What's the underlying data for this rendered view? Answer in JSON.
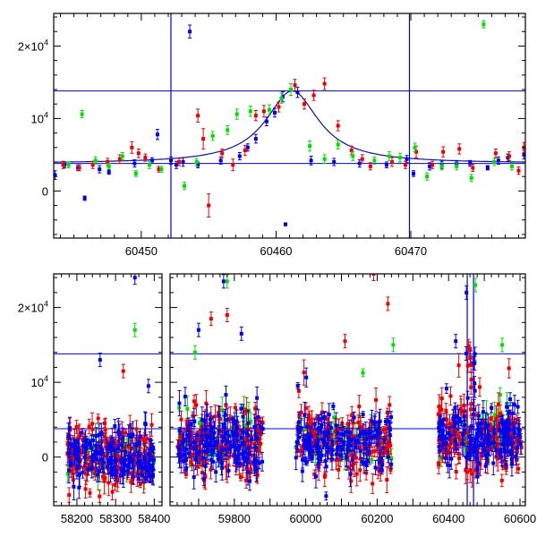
{
  "colors": {
    "blue": "#0000ee",
    "red": "#ee0000",
    "green": "#00dd00",
    "frame": "#000000"
  },
  "chart_data": [
    {
      "type": "scatter",
      "title": "",
      "xlabel": "",
      "ylabel": "",
      "xlim": [
        60443.5,
        60478.5
      ],
      "ylim": [
        -6500,
        24500
      ],
      "x_ticks": [
        {
          "value": 60450,
          "label": "60450"
        },
        {
          "value": 60460,
          "label": "60460"
        },
        {
          "value": 60470,
          "label": "60470"
        }
      ],
      "y_ticks": [
        {
          "value": 0,
          "label": "0"
        },
        {
          "value": 10000,
          "label": "10⁴"
        },
        {
          "value": 20000,
          "label": "2×10⁴"
        }
      ],
      "hlines": [
        3800,
        13800
      ],
      "vlines": [
        60452.2,
        60469.9
      ],
      "model_curve": {
        "type": "lorentzian",
        "baseline": 3800,
        "peak_x": 60461.2,
        "peak_y": 13800,
        "halfwidth": 2.4
      },
      "series": [
        {
          "color": "blue",
          "points": [
            [
              60443.6,
              2200,
              600
            ],
            [
              60444.3,
              3600,
              400
            ],
            [
              60445.3,
              3200,
              400
            ],
            [
              60445.8,
              -1000,
              300
            ],
            [
              60446.9,
              3000,
              500
            ],
            [
              60447.6,
              2600,
              300
            ],
            [
              60449.5,
              3800,
              500
            ],
            [
              60450.8,
              4200,
              400
            ],
            [
              60451.2,
              7800,
              700
            ],
            [
              60452.2,
              4200,
              500
            ],
            [
              60452.6,
              3600,
              500
            ],
            [
              60453.1,
              4000,
              600
            ],
            [
              60453.6,
              22000,
              900
            ],
            [
              60454.2,
              3600,
              400
            ],
            [
              60455.9,
              4200,
              500
            ],
            [
              60457.3,
              4800,
              500
            ],
            [
              60457.9,
              6000,
              500
            ],
            [
              60458.5,
              7200,
              600
            ],
            [
              60459.3,
              9600,
              600
            ],
            [
              60459.9,
              10800,
              600
            ],
            [
              60460.5,
              13000,
              700
            ],
            [
              60460.7,
              -4600,
              200
            ],
            [
              60461.6,
              13600,
              700
            ],
            [
              60462.6,
              4200,
              600
            ],
            [
              60464.3,
              4000,
              500
            ],
            [
              60466.2,
              3800,
              500
            ],
            [
              60468.2,
              3600,
              400
            ],
            [
              60469.7,
              4400,
              500
            ],
            [
              60470.2,
              2400,
              400
            ],
            [
              60471.4,
              3400,
              500
            ],
            [
              60472.3,
              3600,
              500
            ],
            [
              60473.4,
              3800,
              400
            ],
            [
              60474.4,
              3800,
              400
            ],
            [
              60475.7,
              3200,
              300
            ],
            [
              60476.5,
              4200,
              500
            ],
            [
              60477.2,
              4600,
              500
            ],
            [
              60478.4,
              5000,
              600
            ]
          ]
        },
        {
          "color": "red",
          "points": [
            [
              60444.2,
              3600,
              500
            ],
            [
              60445.4,
              3200,
              400
            ],
            [
              60446.4,
              3600,
              500
            ],
            [
              60447.5,
              4000,
              500
            ],
            [
              60448.4,
              4400,
              600
            ],
            [
              60449.3,
              6000,
              800
            ],
            [
              60449.8,
              5200,
              600
            ],
            [
              60450.3,
              4600,
              500
            ],
            [
              60451.3,
              3000,
              400
            ],
            [
              60452.8,
              4000,
              500
            ],
            [
              60454.2,
              10400,
              900
            ],
            [
              60454.6,
              7200,
              1400
            ],
            [
              60455.0,
              -2000,
              1600
            ],
            [
              60456.0,
              5200,
              600
            ],
            [
              60456.8,
              3600,
              800
            ],
            [
              60457.7,
              5600,
              700
            ],
            [
              60458.5,
              10400,
              700
            ],
            [
              60459.1,
              11000,
              800
            ],
            [
              60460.2,
              11600,
              700
            ],
            [
              60461.4,
              14600,
              800
            ],
            [
              60462.1,
              12000,
              700
            ],
            [
              60462.8,
              13200,
              700
            ],
            [
              60463.6,
              14800,
              800
            ],
            [
              60464.6,
              9000,
              700
            ],
            [
              60465.6,
              5600,
              600
            ],
            [
              60466.4,
              4400,
              600
            ],
            [
              60467.0,
              3400,
              500
            ],
            [
              60468.6,
              4000,
              600
            ],
            [
              60469.6,
              3600,
              500
            ],
            [
              60470.4,
              5400,
              800
            ],
            [
              60471.6,
              3600,
              500
            ],
            [
              60472.4,
              5400,
              700
            ],
            [
              60473.6,
              5800,
              700
            ],
            [
              60474.6,
              3200,
              500
            ],
            [
              60476.3,
              5200,
              600
            ],
            [
              60477.3,
              4800,
              600
            ],
            [
              60478.0,
              2800,
              500
            ],
            [
              60478.4,
              6000,
              700
            ]
          ]
        },
        {
          "color": "green",
          "points": [
            [
              60444.6,
              3600,
              400
            ],
            [
              60445.6,
              10600,
              500
            ],
            [
              60446.6,
              4200,
              500
            ],
            [
              60447.6,
              3400,
              400
            ],
            [
              60448.6,
              4800,
              500
            ],
            [
              60449.6,
              2400,
              400
            ],
            [
              60450.6,
              3600,
              500
            ],
            [
              60451.5,
              3000,
              400
            ],
            [
              60453.2,
              700,
              500
            ],
            [
              60454.1,
              4000,
              500
            ],
            [
              60455.3,
              7600,
              600
            ],
            [
              60456.4,
              8400,
              600
            ],
            [
              60457.1,
              10600,
              700
            ],
            [
              60458.1,
              11000,
              700
            ],
            [
              60459.5,
              11200,
              700
            ],
            [
              60460.4,
              12800,
              700
            ],
            [
              60461.1,
              14000,
              800
            ],
            [
              60462.5,
              6200,
              700
            ],
            [
              60463.6,
              4400,
              600
            ],
            [
              60464.6,
              6400,
              600
            ],
            [
              60465.7,
              4800,
              600
            ],
            [
              60467.3,
              4200,
              500
            ],
            [
              60468.4,
              4800,
              600
            ],
            [
              60469.2,
              4600,
              600
            ],
            [
              60470.3,
              6000,
              600
            ],
            [
              60471.2,
              2000,
              500
            ],
            [
              60472.3,
              3400,
              500
            ],
            [
              60473.4,
              3400,
              500
            ],
            [
              60474.5,
              1800,
              500
            ],
            [
              60475.4,
              23000,
              500
            ],
            [
              60476.2,
              4000,
              500
            ],
            [
              60477.5,
              3400,
              500
            ]
          ]
        }
      ]
    },
    {
      "type": "scatter",
      "title": "",
      "xlabel": "",
      "ylabel": "",
      "ylim": [
        -6500,
        24500
      ],
      "axis_breaks": "broken x-axis: 58140–58420 | 59620–60615",
      "x_ticks": [
        {
          "value": 58200,
          "label": "58200"
        },
        {
          "value": 58300,
          "label": "58300"
        },
        {
          "value": 58400,
          "label": "58400"
        },
        {
          "value": 59800,
          "label": "59800"
        },
        {
          "value": 60000,
          "label": "60000"
        },
        {
          "value": 60200,
          "label": "60200"
        },
        {
          "value": 60400,
          "label": "60400"
        },
        {
          "value": 60600,
          "label": "60600"
        }
      ],
      "y_ticks": [
        {
          "value": 0,
          "label": "0"
        },
        {
          "value": 10000,
          "label": "10⁴"
        },
        {
          "value": 20000,
          "label": "2×10⁴"
        }
      ],
      "hlines": [
        3800,
        13800
      ],
      "vlines": [
        60452.2,
        60469.9
      ],
      "seasons": [
        {
          "xrange": [
            58175,
            58400
          ],
          "center": 0,
          "spread": 2600
        },
        {
          "xrange": [
            59640,
            59880
          ],
          "center": 2000,
          "spread": 3200
        },
        {
          "xrange": [
            59970,
            60245
          ],
          "center": 2200,
          "spread": 2800
        },
        {
          "xrange": [
            60370,
            60605
          ],
          "center": 2600,
          "spread": 3000
        }
      ],
      "highlight_points": [
        {
          "color": "blue",
          "x": 58260,
          "y": 13000
        },
        {
          "color": "blue",
          "x": 58350,
          "y": 24000
        },
        {
          "color": "green",
          "x": 58350,
          "y": 17000
        },
        {
          "color": "red",
          "x": 58320,
          "y": 11500
        },
        {
          "color": "blue",
          "x": 58385,
          "y": 9500
        },
        {
          "color": "blue",
          "x": 59700,
          "y": 17000
        },
        {
          "color": "green",
          "x": 59690,
          "y": 14000
        },
        {
          "color": "red",
          "x": 59735,
          "y": 18500
        },
        {
          "color": "red",
          "x": 59780,
          "y": 19000
        },
        {
          "color": "blue",
          "x": 59820,
          "y": 16500
        },
        {
          "color": "green",
          "x": 59780,
          "y": 23500
        },
        {
          "color": "blue",
          "x": 59770,
          "y": 23500
        },
        {
          "color": "red",
          "x": 60110,
          "y": 15500
        },
        {
          "color": "red",
          "x": 60190,
          "y": 24500
        },
        {
          "color": "red",
          "x": 60230,
          "y": 20500
        },
        {
          "color": "green",
          "x": 60245,
          "y": 15000
        },
        {
          "color": "blue",
          "x": 60420,
          "y": 15500
        },
        {
          "color": "blue",
          "x": 60450,
          "y": 22000
        },
        {
          "color": "red",
          "x": 60460,
          "y": 14500
        },
        {
          "color": "green",
          "x": 60550,
          "y": 15000
        },
        {
          "color": "green",
          "x": 60475,
          "y": 23000
        }
      ]
    }
  ]
}
